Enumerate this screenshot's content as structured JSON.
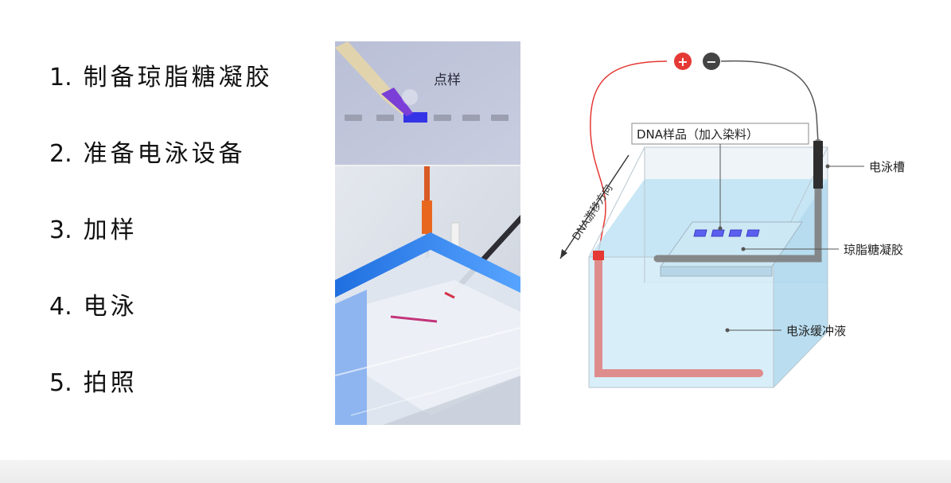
{
  "steps": [
    {
      "number": "1.",
      "text": "制备琼脂糖凝胶"
    },
    {
      "number": "2.",
      "text": "准备电泳设备"
    },
    {
      "number": "3.",
      "text": "加样"
    },
    {
      "number": "4.",
      "text": "电泳"
    },
    {
      "number": "5.",
      "text": "拍照"
    }
  ],
  "photo": {
    "caption": "点样"
  },
  "schematic": {
    "sample_label": "DNA样品（加入染料）",
    "direction_label": "DNA游移方向",
    "tank_label": "电泳槽",
    "gel_label": "琼脂糖凝胶",
    "buffer_label": "电泳缓冲液",
    "positive_symbol": "+",
    "negative_symbol": "−",
    "colors": {
      "positive": "#e53935",
      "negative": "#444444",
      "buffer": "#bfe3f5",
      "well": "#5b5ff0"
    }
  }
}
